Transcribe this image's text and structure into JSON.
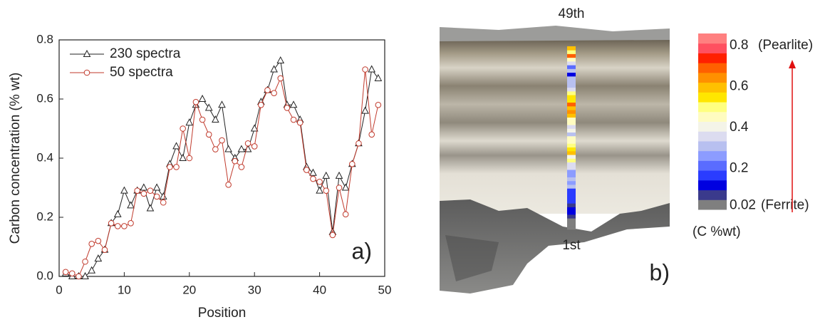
{
  "chart_data": [
    {
      "type": "line",
      "panel_label": "a)",
      "x_label": "Position",
      "y_label": "Carbon concentration (% wt)",
      "xlim": [
        0,
        50
      ],
      "xticks": [
        0,
        10,
        20,
        30,
        40,
        50
      ],
      "ylim": [
        0,
        0.8
      ],
      "yticks": [
        {
          "value": 0,
          "label": "0.0"
        },
        0.2,
        0.4,
        0.6,
        0.8
      ],
      "legend": "upper left",
      "x": [
        1,
        2,
        3,
        4,
        5,
        6,
        7,
        8,
        9,
        10,
        11,
        12,
        13,
        14,
        15,
        16,
        17,
        18,
        19,
        20,
        21,
        22,
        23,
        24,
        25,
        26,
        27,
        28,
        29,
        30,
        31,
        32,
        33,
        34,
        35,
        36,
        37,
        38,
        39,
        40,
        41,
        42,
        43,
        44,
        45,
        46,
        47,
        48,
        49
      ],
      "series": [
        {
          "name": "230 spectra",
          "color": "#222222",
          "marker": "triangle",
          "values": [
            0.01,
            0,
            0,
            0,
            0.02,
            0.06,
            0.09,
            0.18,
            0.21,
            0.29,
            0.24,
            0.29,
            0.3,
            0.23,
            0.3,
            0.27,
            0.38,
            0.44,
            0.4,
            0.52,
            0.58,
            0.6,
            0.57,
            0.53,
            0.58,
            0.43,
            0.4,
            0.43,
            0.43,
            0.5,
            0.59,
            0.63,
            0.7,
            0.73,
            0.58,
            0.58,
            0.53,
            0.37,
            0.35,
            0.29,
            0.34,
            0.15,
            0.34,
            0.3,
            0.38,
            0.45,
            0.56,
            0.7,
            0.67
          ]
        },
        {
          "name": "50 spectra",
          "color": "#c0392b",
          "marker": "circle",
          "values": [
            0.015,
            0.01,
            0,
            0.05,
            0.11,
            0.12,
            0.09,
            0.18,
            0.17,
            0.17,
            0.18,
            0.29,
            0.28,
            0.29,
            0.27,
            0.25,
            0.37,
            0.37,
            0.5,
            0.4,
            0.59,
            0.53,
            0.48,
            0.43,
            0.46,
            0.31,
            0.39,
            0.37,
            0.45,
            0.44,
            0.58,
            0.63,
            0.62,
            0.67,
            0.57,
            0.53,
            0.52,
            0.36,
            0.33,
            0.32,
            0.29,
            0.14,
            0.3,
            0.21,
            0.38,
            0.45,
            0.7,
            0.48,
            0.58
          ]
        }
      ]
    },
    {
      "type": "image",
      "panel_label": "b)",
      "top_label": "49th",
      "bottom_label": "1st",
      "colorbar": {
        "lim": [
          0,
          0.86
        ],
        "ticks": [
          0.8,
          0.6,
          0.4,
          0.2,
          0.02
        ],
        "title": "(C %wt)",
        "colors": [
          "#7f7f7f",
          "#3a3a8c",
          "#0000e0",
          "#2a3cff",
          "#5a6cff",
          "#8c9cff",
          "#b8c0f0",
          "#dcdcf0",
          "#f4f4e8",
          "#fffcc0",
          "#ffff80",
          "#ffe600",
          "#ffc000",
          "#ff9000",
          "#ff6000",
          "#ff2000",
          "#ff5060",
          "#ff8080"
        ]
      },
      "top_annotation": "(Pearlite)",
      "bottom_annotation": "(Ferrite)",
      "arrow_color": "#e01010"
    }
  ]
}
